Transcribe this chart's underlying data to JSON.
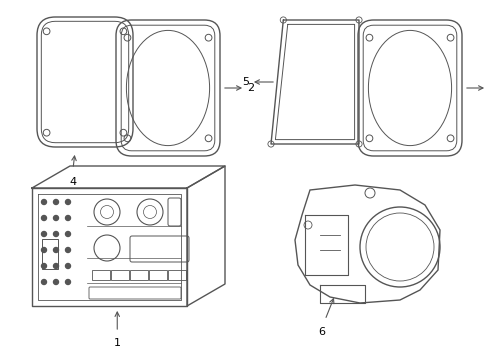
{
  "bg_color": "#ffffff",
  "line_color": "#555555",
  "line_width": 1.0,
  "fig_width": 4.89,
  "fig_height": 3.6,
  "dpi": 100
}
